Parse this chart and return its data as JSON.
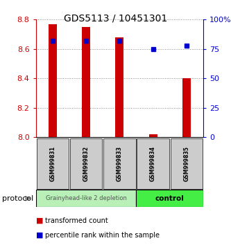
{
  "title": "GDS5113 / 10451301",
  "samples": [
    "GSM999831",
    "GSM999832",
    "GSM999833",
    "GSM999834",
    "GSM999835"
  ],
  "transformed_counts": [
    8.77,
    8.75,
    8.68,
    8.02,
    8.4
  ],
  "transformed_bottom": [
    8.0,
    8.0,
    8.0,
    8.0,
    8.0
  ],
  "percentile_ranks": [
    82,
    82,
    82,
    75,
    78
  ],
  "ylim": [
    8.0,
    8.8
  ],
  "y_ticks": [
    8.0,
    8.2,
    8.4,
    8.6,
    8.8
  ],
  "right_ylim": [
    0,
    100
  ],
  "right_yticks": [
    0,
    25,
    50,
    75,
    100
  ],
  "right_yticklabels": [
    "0",
    "25",
    "50",
    "75",
    "100%"
  ],
  "bar_color": "#cc0000",
  "dot_color": "#0000cc",
  "bar_width": 0.25,
  "groups": [
    {
      "label": "Grainyhead-like 2 depletion",
      "n": 3,
      "color": "#b8f0b8",
      "bold": false
    },
    {
      "label": "control",
      "n": 2,
      "color": "#44ee44",
      "bold": true
    }
  ],
  "protocol_label": "protocol",
  "background_color": "#ffffff",
  "left_tick_color": "#cc0000",
  "right_tick_color": "#0000cc",
  "grid_color": "#888888",
  "sample_box_color": "#cccccc",
  "legend_items": [
    {
      "label": "transformed count",
      "color": "#cc0000"
    },
    {
      "label": "percentile rank within the sample",
      "color": "#0000cc"
    }
  ]
}
